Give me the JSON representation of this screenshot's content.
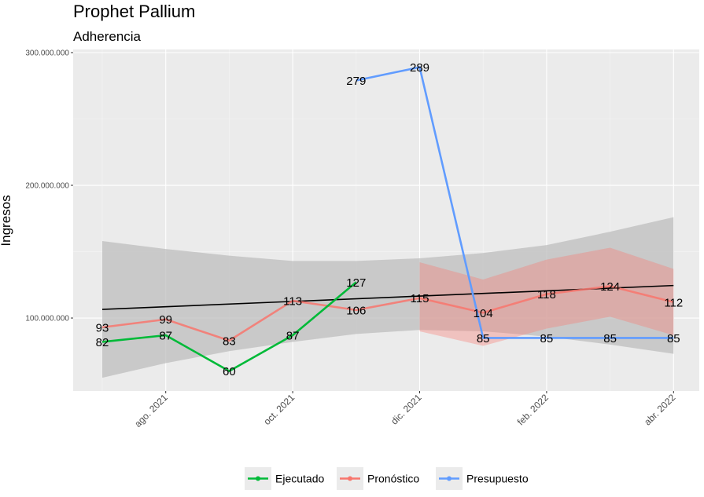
{
  "chart_data": {
    "type": "line",
    "title": "Prophet Pallium",
    "subtitle": "Adherencia",
    "ylabel": "Ingresos",
    "xlabel": "",
    "ylim": [
      45000000,
      300000000
    ],
    "x_ticks": [
      {
        "m": 1,
        "label": "ago. 2021"
      },
      {
        "m": 3,
        "label": "oct. 2021"
      },
      {
        "m": 5,
        "label": "dic. 2021"
      },
      {
        "m": 7,
        "label": "feb. 2022"
      },
      {
        "m": 9,
        "label": "abr. 2022"
      }
    ],
    "y_ticks": [
      {
        "v": 100000000,
        "label": "100.000.000"
      },
      {
        "v": 200000000,
        "label": "200.000.000"
      },
      {
        "v": 300000000,
        "label": "300.000.000"
      }
    ],
    "grid": true,
    "legend": {
      "position": "bottom"
    },
    "series": [
      {
        "name": "Ejecutado",
        "color": "#00ba38",
        "points": [
          {
            "m": 0,
            "y": 82000000,
            "label": "82"
          },
          {
            "m": 1,
            "y": 87000000,
            "label": "87"
          },
          {
            "m": 2,
            "y": 60000000,
            "label": "60"
          },
          {
            "m": 3,
            "y": 87000000,
            "label": "87"
          },
          {
            "m": 4,
            "y": 127000000,
            "label": "127"
          }
        ]
      },
      {
        "name": "Pronóstico",
        "color": "#f8766d",
        "points": [
          {
            "m": 0,
            "y": 93000000,
            "label": "93"
          },
          {
            "m": 1,
            "y": 99000000,
            "label": "99"
          },
          {
            "m": 2,
            "y": 83000000,
            "label": "83"
          },
          {
            "m": 3,
            "y": 113000000,
            "label": "113"
          },
          {
            "m": 4,
            "y": 106000000,
            "label": "106"
          },
          {
            "m": 5,
            "y": 115000000,
            "label": "115"
          },
          {
            "m": 6,
            "y": 104000000,
            "label": "104"
          },
          {
            "m": 7,
            "y": 118000000,
            "label": "118"
          },
          {
            "m": 8,
            "y": 124000000,
            "label": "124"
          },
          {
            "m": 9,
            "y": 112000000,
            "label": "112"
          }
        ],
        "band": [
          {
            "m": 5,
            "lo": 90000000,
            "hi": 142000000
          },
          {
            "m": 6,
            "lo": 79000000,
            "hi": 129000000
          },
          {
            "m": 7,
            "lo": 92000000,
            "hi": 144000000
          },
          {
            "m": 8,
            "lo": 101000000,
            "hi": 153000000
          },
          {
            "m": 9,
            "lo": 87000000,
            "hi": 137000000
          }
        ]
      },
      {
        "name": "Presupuesto",
        "color": "#619cff",
        "points": [
          {
            "m": 4,
            "y": 279000000,
            "label": "279"
          },
          {
            "m": 5,
            "y": 289000000,
            "label": "289"
          },
          {
            "m": 6,
            "y": 85000000,
            "label": "85"
          },
          {
            "m": 7,
            "y": 85000000,
            "label": "85"
          },
          {
            "m": 8,
            "y": 85000000,
            "label": "85"
          },
          {
            "m": 9,
            "y": 85000000,
            "label": "85"
          }
        ]
      }
    ],
    "trend": {
      "color": "#000000",
      "start": {
        "m": 0,
        "y": 106500000
      },
      "end": {
        "m": 9,
        "y": 124500000
      },
      "band_color": "#bebebe",
      "band": [
        {
          "m": 0,
          "lo": 55000000,
          "hi": 158000000
        },
        {
          "m": 1,
          "lo": 66000000,
          "hi": 152000000
        },
        {
          "m": 2,
          "lo": 75000000,
          "hi": 147000000
        },
        {
          "m": 3,
          "lo": 82000000,
          "hi": 143000000
        },
        {
          "m": 4,
          "lo": 88000000,
          "hi": 143000000
        },
        {
          "m": 5,
          "lo": 91000000,
          "hi": 145000000
        },
        {
          "m": 6,
          "lo": 90000000,
          "hi": 149000000
        },
        {
          "m": 7,
          "lo": 86000000,
          "hi": 155000000
        },
        {
          "m": 8,
          "lo": 80000000,
          "hi": 165000000
        },
        {
          "m": 9,
          "lo": 73000000,
          "hi": 176000000
        }
      ]
    }
  }
}
